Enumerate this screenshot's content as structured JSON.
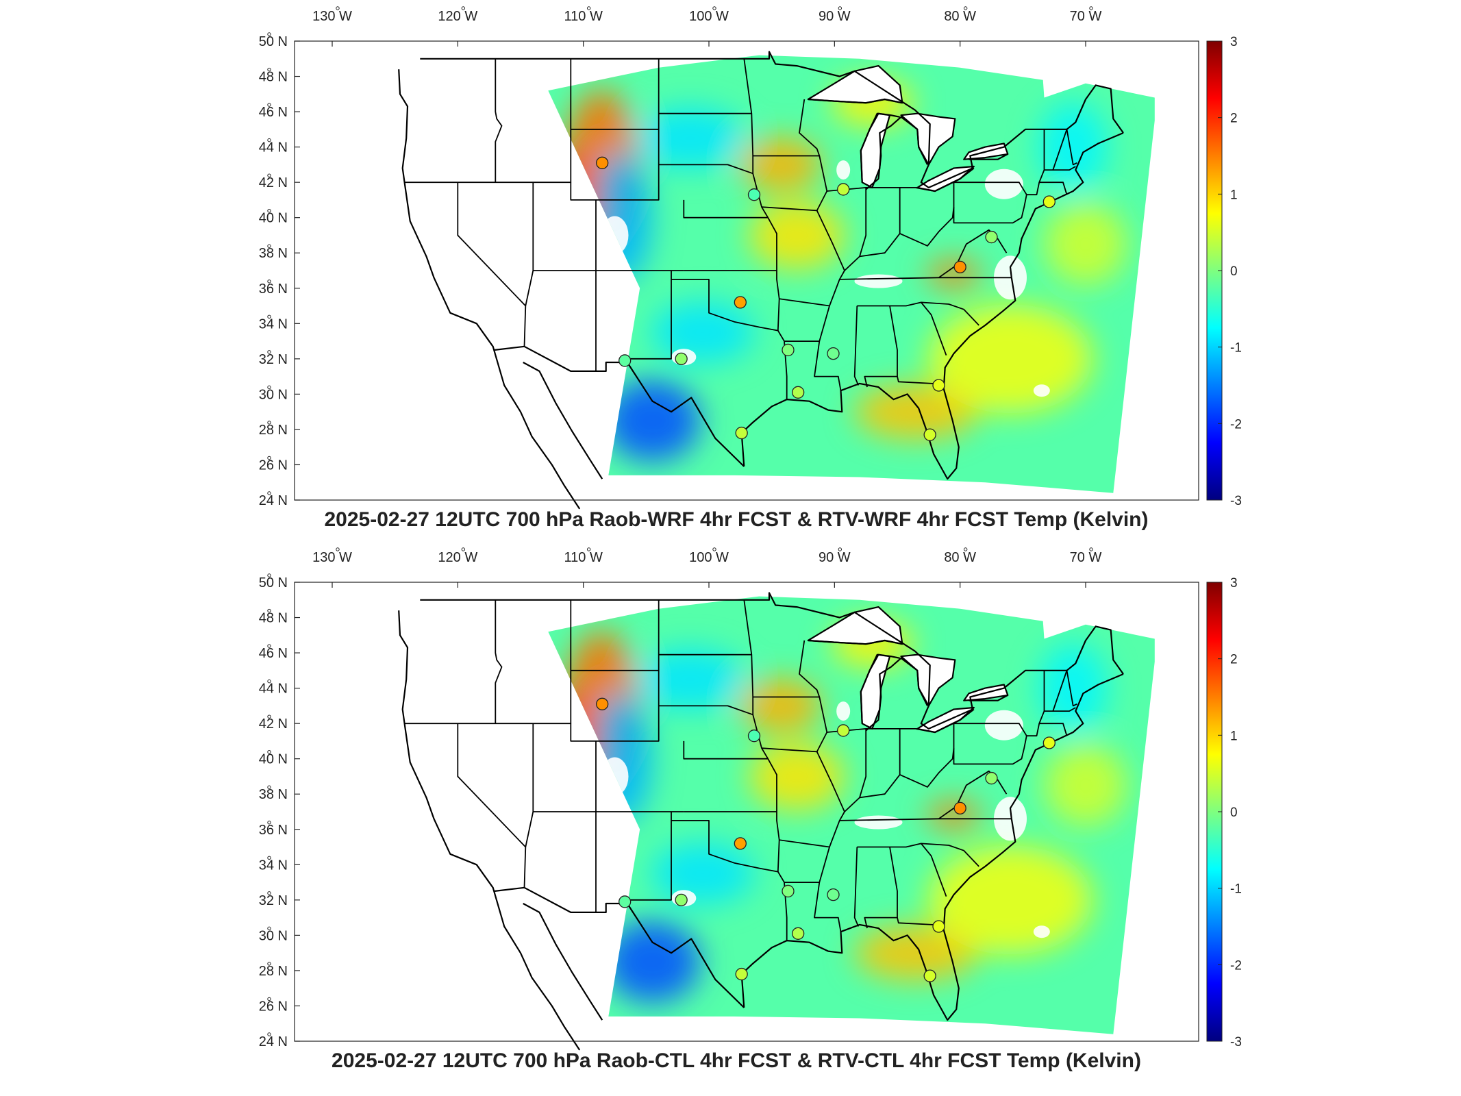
{
  "panels": [
    {
      "id": "top",
      "title": "2025-02-27 12UTC 700 hPa Raob-WRF 4hr FCST & RTV-WRF 4hr FCST Temp (Kelvin)",
      "stations": [
        {
          "lon": -108.5,
          "lat": 43.1,
          "value": 1.4
        },
        {
          "lon": -96.4,
          "lat": 41.3,
          "value": -0.3
        },
        {
          "lon": -89.3,
          "lat": 41.6,
          "value": 0.4
        },
        {
          "lon": -97.5,
          "lat": 35.2,
          "value": 1.3
        },
        {
          "lon": -106.7,
          "lat": 31.9,
          "value": -0.2
        },
        {
          "lon": -102.2,
          "lat": 32.0,
          "value": 0.1
        },
        {
          "lon": -93.7,
          "lat": 32.5,
          "value": 0.0
        },
        {
          "lon": -90.1,
          "lat": 32.3,
          "value": -0.1
        },
        {
          "lon": -92.9,
          "lat": 30.1,
          "value": 0.3
        },
        {
          "lon": -97.4,
          "lat": 27.8,
          "value": 0.4
        },
        {
          "lon": -81.7,
          "lat": 30.5,
          "value": 0.6
        },
        {
          "lon": -82.4,
          "lat": 27.7,
          "value": 0.5
        },
        {
          "lon": -80.0,
          "lat": 37.2,
          "value": 1.4
        },
        {
          "lon": -77.5,
          "lat": 38.9,
          "value": 0.1
        },
        {
          "lon": -72.9,
          "lat": 40.9,
          "value": 0.6
        }
      ]
    },
    {
      "id": "bottom",
      "title": "2025-02-27 12UTC 700 hPa Raob-CTL 4hr FCST & RTV-CTL 4hr FCST Temp (Kelvin)",
      "stations": [
        {
          "lon": -108.5,
          "lat": 43.1,
          "value": 1.4
        },
        {
          "lon": -96.4,
          "lat": 41.3,
          "value": -0.3
        },
        {
          "lon": -89.3,
          "lat": 41.6,
          "value": 0.4
        },
        {
          "lon": -97.5,
          "lat": 35.2,
          "value": 1.3
        },
        {
          "lon": -106.7,
          "lat": 31.9,
          "value": -0.2
        },
        {
          "lon": -102.2,
          "lat": 32.0,
          "value": 0.1
        },
        {
          "lon": -93.7,
          "lat": 32.5,
          "value": 0.0
        },
        {
          "lon": -90.1,
          "lat": 32.3,
          "value": -0.1
        },
        {
          "lon": -92.9,
          "lat": 30.1,
          "value": 0.3
        },
        {
          "lon": -97.4,
          "lat": 27.8,
          "value": 0.4
        },
        {
          "lon": -81.7,
          "lat": 30.5,
          "value": 0.6
        },
        {
          "lon": -82.4,
          "lat": 27.7,
          "value": 0.5
        },
        {
          "lon": -80.0,
          "lat": 37.2,
          "value": 1.4
        },
        {
          "lon": -77.5,
          "lat": 38.9,
          "value": 0.1
        },
        {
          "lon": -72.9,
          "lat": 40.9,
          "value": 0.6
        }
      ]
    }
  ],
  "lon_ticks": [
    {
      "lon": -130,
      "label": "130 W"
    },
    {
      "lon": -120,
      "label": "120 W"
    },
    {
      "lon": -110,
      "label": "110 W"
    },
    {
      "lon": -100,
      "label": "100 W"
    },
    {
      "lon": -90,
      "label": "90 W"
    },
    {
      "lon": -80,
      "label": "80 W"
    },
    {
      "lon": -70,
      "label": "70 W"
    }
  ],
  "lat_ticks": [
    {
      "lat": 50,
      "label": "50 N"
    },
    {
      "lat": 48,
      "label": "48 N"
    },
    {
      "lat": 46,
      "label": "46 N"
    },
    {
      "lat": 44,
      "label": "44 N"
    },
    {
      "lat": 42,
      "label": "42 N"
    },
    {
      "lat": 40,
      "label": "40 N"
    },
    {
      "lat": 38,
      "label": "38 N"
    },
    {
      "lat": 36,
      "label": "36 N"
    },
    {
      "lat": 34,
      "label": "34 N"
    },
    {
      "lat": 32,
      "label": "32 N"
    },
    {
      "lat": 30,
      "label": "30 N"
    },
    {
      "lat": 28,
      "label": "28 N"
    },
    {
      "lat": 26,
      "label": "26 N"
    },
    {
      "lat": 24,
      "label": "24 N"
    }
  ],
  "colorbar": {
    "min": -3,
    "max": 3,
    "ticks": [
      {
        "value": 3,
        "label": "3"
      },
      {
        "value": 2,
        "label": "2"
      },
      {
        "value": 1,
        "label": "1"
      },
      {
        "value": 0,
        "label": "0"
      },
      {
        "value": -1,
        "label": "-1"
      },
      {
        "value": -2,
        "label": "-2"
      },
      {
        "value": -3,
        "label": "-3"
      }
    ],
    "colors": [
      "#00007f",
      "#0000ff",
      "#007fff",
      "#00ffff",
      "#7fff7f",
      "#ffff00",
      "#ff7f00",
      "#ff0000",
      "#7f0000"
    ]
  }
}
